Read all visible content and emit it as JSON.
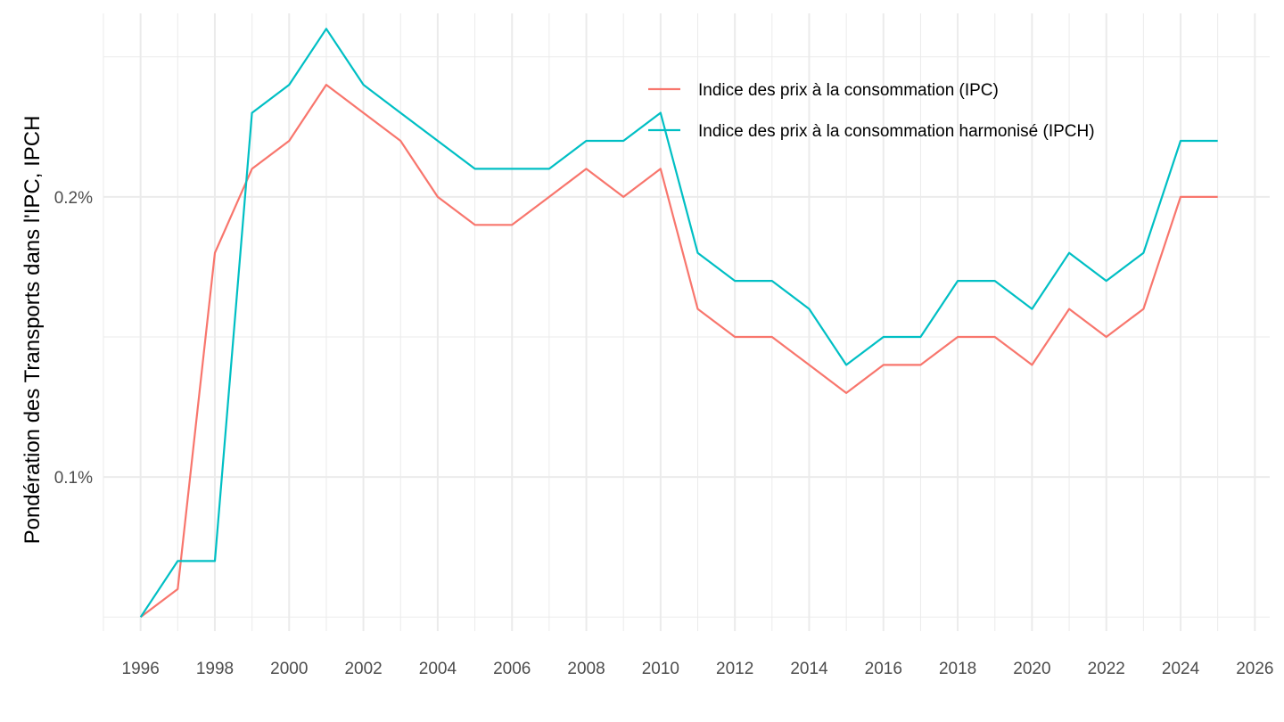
{
  "chart_data": {
    "type": "line",
    "title": "",
    "xlabel": "",
    "ylabel": "Pondération des Transports dans l'IPC, IPCH",
    "x": [
      1996,
      1997,
      1998,
      1999,
      2000,
      2001,
      2002,
      2003,
      2004,
      2005,
      2006,
      2007,
      2008,
      2009,
      2010,
      2011,
      2012,
      2013,
      2014,
      2015,
      2016,
      2017,
      2018,
      2019,
      2020,
      2021,
      2022,
      2023,
      2024,
      2025
    ],
    "series": [
      {
        "name": "Indice des prix à la consommation (IPC)",
        "color": "#F8766D",
        "values": [
          0.05,
          0.06,
          0.18,
          0.21,
          0.22,
          0.24,
          0.23,
          0.22,
          0.2,
          0.19,
          0.19,
          0.2,
          0.21,
          0.2,
          0.21,
          0.16,
          0.15,
          0.15,
          0.14,
          0.13,
          0.14,
          0.14,
          0.15,
          0.15,
          0.14,
          0.16,
          0.15,
          0.16,
          0.2,
          0.2
        ]
      },
      {
        "name": "Indice des prix à la consommation harmonisé (IPCH)",
        "color": "#00BFC4",
        "values": [
          0.05,
          0.07,
          0.07,
          0.23,
          0.24,
          0.26,
          0.24,
          0.23,
          0.22,
          0.21,
          0.21,
          0.21,
          0.22,
          0.22,
          0.23,
          0.18,
          0.17,
          0.17,
          0.16,
          0.14,
          0.15,
          0.15,
          0.17,
          0.17,
          0.16,
          0.18,
          0.17,
          0.18,
          0.22,
          0.22
        ]
      }
    ],
    "xlim": [
      1995,
      2026.4
    ],
    "ylim": [
      0.045,
      0.2655
    ],
    "x_ticks": [
      1996,
      1998,
      2000,
      2002,
      2004,
      2006,
      2008,
      2010,
      2012,
      2014,
      2016,
      2018,
      2020,
      2022,
      2024,
      2026
    ],
    "x_tick_labels": [
      "1996",
      "1998",
      "2000",
      "2002",
      "2004",
      "2006",
      "2008",
      "2010",
      "2012",
      "2014",
      "2016",
      "2018",
      "2020",
      "2022",
      "2024",
      "2026"
    ],
    "y_major_ticks": [
      0.1,
      0.2
    ],
    "y_tick_labels": [
      "0.1%",
      "0.2%"
    ],
    "y_minor_ticks": [
      0.05,
      0.15,
      0.25
    ],
    "grid": true,
    "legend_position": "top-right"
  }
}
